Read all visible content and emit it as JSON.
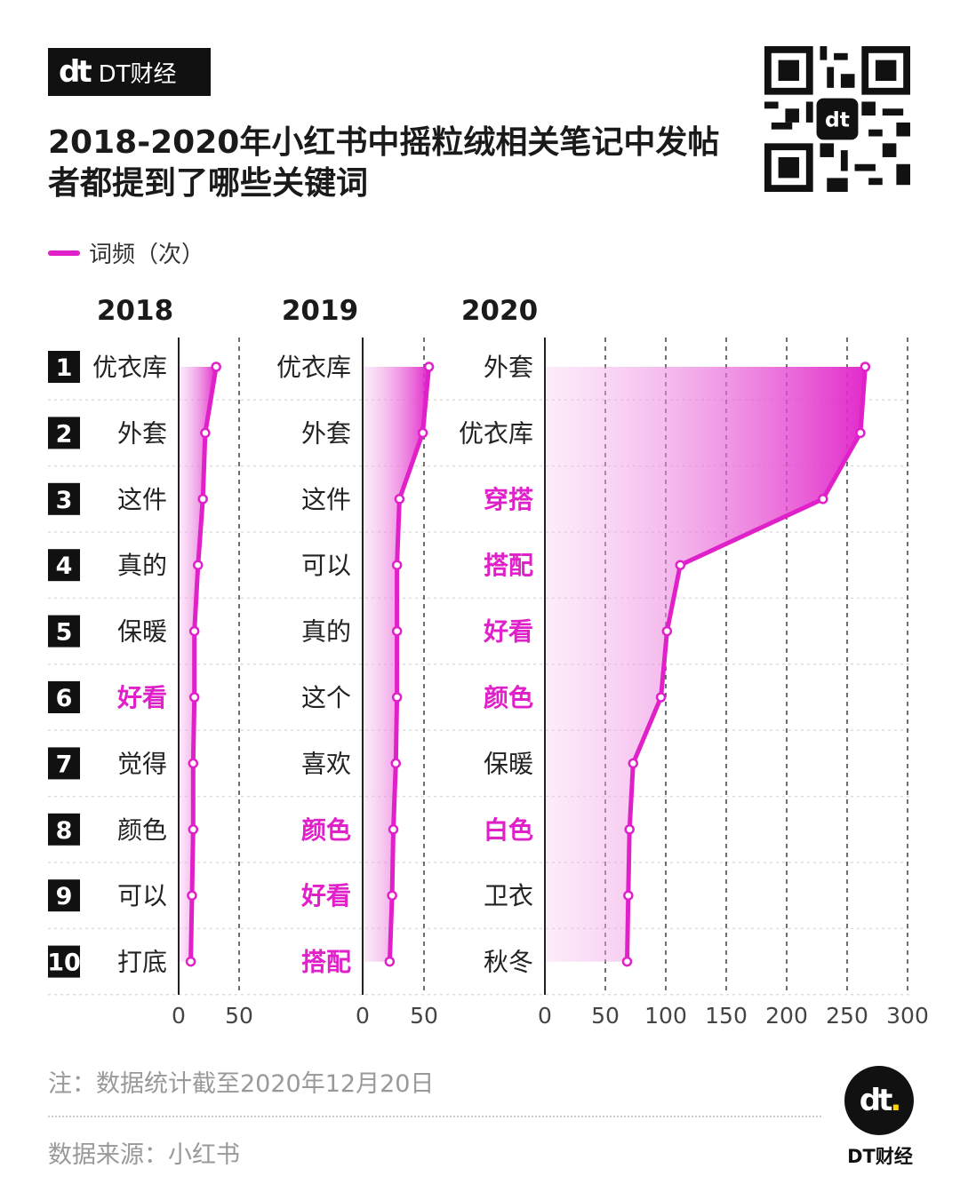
{
  "brand": {
    "logo_text": "dt",
    "name": "DT财经"
  },
  "title": "2018-2020年小红书中摇粒绒相关笔记中发帖者都提到了哪些关键词",
  "legend": {
    "label": "词频（次）",
    "color": "#e020c8"
  },
  "note": "注：数据统计截至2020年12月20日",
  "source": "数据来源：小红书",
  "footer_logo": {
    "text": "dt",
    "caption": "DT财经"
  },
  "colors": {
    "accent": "#e020c8",
    "highlight_text": "#e020c8",
    "normal_text": "#222222",
    "rank_box": "#111111"
  },
  "chart_data": {
    "type": "area",
    "ranks": [
      "1",
      "2",
      "3",
      "4",
      "5",
      "6",
      "7",
      "8",
      "9",
      "10"
    ],
    "panels": [
      {
        "year": "2018",
        "xlim": [
          0,
          50
        ],
        "ticks": [
          "0",
          "50"
        ],
        "tick_values": [
          0,
          50
        ],
        "labels": [
          "优衣库",
          "外套",
          "这件",
          "真的",
          "保暖",
          "好看",
          "觉得",
          "颜色",
          "可以",
          "打底"
        ],
        "highlight": [
          false,
          false,
          false,
          false,
          false,
          true,
          false,
          false,
          false,
          false
        ],
        "values": [
          31,
          22,
          20,
          16,
          13,
          13,
          12,
          12,
          11,
          10
        ]
      },
      {
        "year": "2019",
        "xlim": [
          0,
          50
        ],
        "ticks": [
          "0",
          "50"
        ],
        "tick_values": [
          0,
          50
        ],
        "labels": [
          "优衣库",
          "外套",
          "这件",
          "可以",
          "真的",
          "这个",
          "喜欢",
          "颜色",
          "好看",
          "搭配"
        ],
        "highlight": [
          false,
          false,
          false,
          false,
          false,
          false,
          false,
          true,
          true,
          true
        ],
        "values": [
          54,
          49,
          30,
          28,
          28,
          28,
          27,
          25,
          24,
          22
        ]
      },
      {
        "year": "2020",
        "xlim": [
          0,
          300
        ],
        "ticks": [
          "0",
          "50",
          "100",
          "150",
          "200",
          "250",
          "300"
        ],
        "tick_values": [
          0,
          50,
          100,
          150,
          200,
          250,
          300
        ],
        "labels": [
          "外套",
          "优衣库",
          "穿搭",
          "搭配",
          "好看",
          "颜色",
          "保暖",
          "白色",
          "卫衣",
          "秋冬"
        ],
        "highlight": [
          false,
          false,
          true,
          true,
          true,
          true,
          false,
          true,
          false,
          false
        ],
        "values": [
          265,
          261,
          230,
          112,
          101,
          96,
          73,
          70,
          69,
          68
        ]
      }
    ]
  }
}
